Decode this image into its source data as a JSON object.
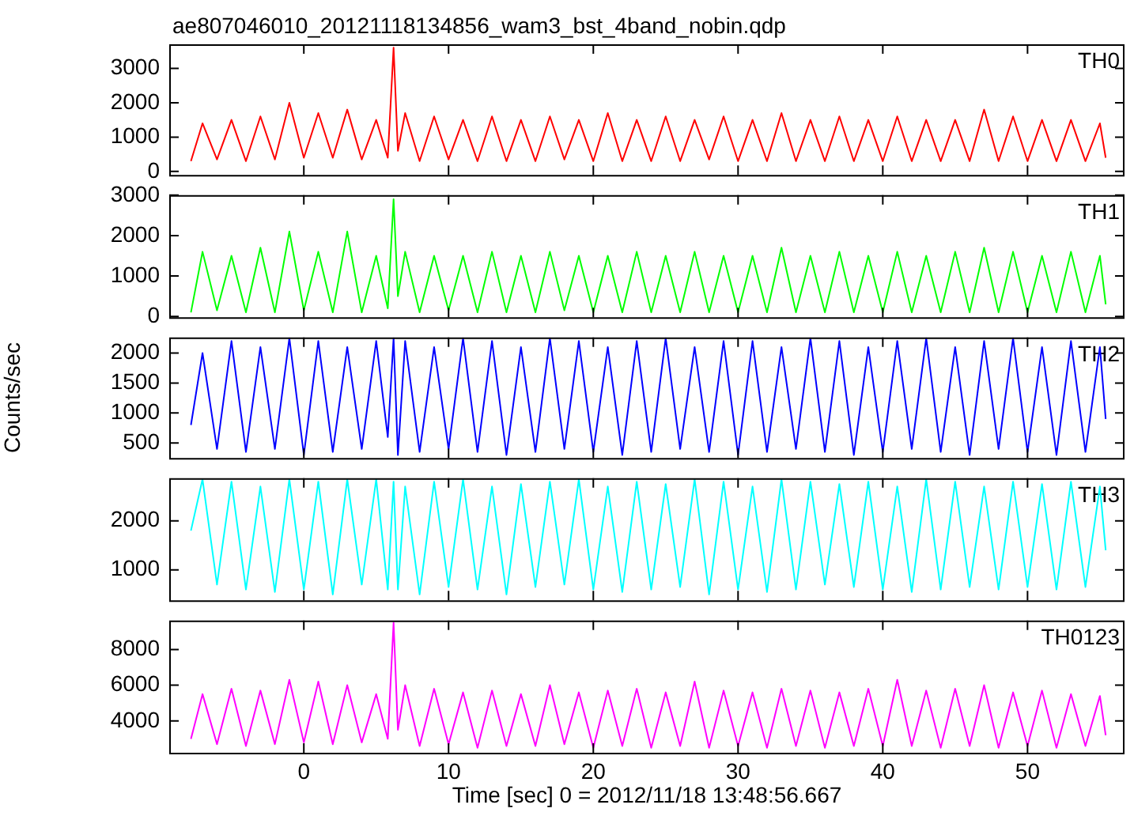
{
  "chart_data": [
    {
      "type": "line",
      "title": "ae807046010_20121118134856_wam3_bst_4band_nobin.qdp",
      "x": [
        -7.8,
        -7,
        -6,
        -5,
        -4,
        -3,
        -2,
        -1,
        0,
        1,
        2,
        3,
        4,
        5,
        5.8,
        6.2,
        6.5,
        7,
        8,
        9,
        10,
        11,
        12,
        13,
        14,
        15,
        16,
        17,
        18,
        19,
        20,
        21,
        22,
        23,
        24,
        25,
        26,
        27,
        28,
        29,
        30,
        31,
        32,
        33,
        34,
        35,
        36,
        37,
        38,
        39,
        40,
        41,
        42,
        43,
        44,
        45,
        46,
        47,
        48,
        49,
        50,
        51,
        52,
        53,
        54,
        55,
        55.4
      ],
      "xlim": [
        -9.3,
        56.7
      ],
      "xticks": [
        0,
        10,
        20,
        30,
        40,
        50
      ],
      "ylim": [
        -100,
        3700
      ],
      "yticks": [
        0,
        1000,
        2000,
        3000
      ],
      "tick_labels": "y",
      "marker": "none",
      "series": [
        {
          "name": "TH0",
          "color": "#ff0000",
          "values": [
            300,
            1400,
            350,
            1500,
            300,
            1600,
            350,
            2000,
            400,
            1700,
            400,
            1800,
            350,
            1500,
            400,
            3600,
            600,
            1700,
            300,
            1600,
            350,
            1500,
            300,
            1600,
            300,
            1500,
            300,
            1600,
            350,
            1500,
            300,
            1700,
            300,
            1500,
            300,
            1600,
            300,
            1500,
            350,
            1600,
            300,
            1500,
            300,
            1700,
            300,
            1500,
            300,
            1600,
            300,
            1500,
            300,
            1600,
            300,
            1500,
            300,
            1500,
            300,
            1800,
            300,
            1600,
            300,
            1500,
            300,
            1500,
            300,
            1400,
            400
          ]
        }
      ]
    },
    {
      "type": "line",
      "x": [
        -7.8,
        -7,
        -6,
        -5,
        -4,
        -3,
        -2,
        -1,
        0,
        1,
        2,
        3,
        4,
        5,
        5.8,
        6.2,
        6.5,
        7,
        8,
        9,
        10,
        11,
        12,
        13,
        14,
        15,
        16,
        17,
        18,
        19,
        20,
        21,
        22,
        23,
        24,
        25,
        26,
        27,
        28,
        29,
        30,
        31,
        32,
        33,
        34,
        35,
        36,
        37,
        38,
        39,
        40,
        41,
        42,
        43,
        44,
        45,
        46,
        47,
        48,
        49,
        50,
        51,
        52,
        53,
        54,
        55,
        55.4
      ],
      "xlim": [
        -9.3,
        56.7
      ],
      "xticks": [
        0,
        10,
        20,
        30,
        40,
        50
      ],
      "ylim": [
        -20,
        3000
      ],
      "yticks": [
        0,
        1000,
        2000,
        3000
      ],
      "tick_labels": "y",
      "marker": "none",
      "series": [
        {
          "name": "TH1",
          "color": "#00ff00",
          "values": [
            100,
            1600,
            150,
            1500,
            100,
            1700,
            100,
            2100,
            150,
            1600,
            100,
            2100,
            100,
            1500,
            200,
            2900,
            500,
            1600,
            100,
            1500,
            150,
            1500,
            100,
            1600,
            100,
            1500,
            100,
            1600,
            150,
            1500,
            100,
            1500,
            100,
            1600,
            100,
            1500,
            100,
            1600,
            100,
            1500,
            100,
            1500,
            100,
            1700,
            100,
            1500,
            100,
            1600,
            100,
            1500,
            100,
            1600,
            100,
            1500,
            100,
            1600,
            100,
            1700,
            100,
            1600,
            100,
            1500,
            100,
            1600,
            100,
            1500,
            300
          ]
        }
      ]
    },
    {
      "type": "line",
      "ylabel": "Counts/sec",
      "x": [
        -7.8,
        -7,
        -6,
        -5,
        -4,
        -3,
        -2,
        -1,
        0,
        1,
        2,
        3,
        4,
        5,
        5.8,
        6.2,
        6.5,
        7,
        8,
        9,
        10,
        11,
        12,
        13,
        14,
        15,
        16,
        17,
        18,
        19,
        20,
        21,
        22,
        23,
        24,
        25,
        26,
        27,
        28,
        29,
        30,
        31,
        32,
        33,
        34,
        35,
        36,
        37,
        38,
        39,
        40,
        41,
        42,
        43,
        44,
        45,
        46,
        47,
        48,
        49,
        50,
        51,
        52,
        53,
        54,
        55,
        55.4
      ],
      "xlim": [
        -9.3,
        56.7
      ],
      "xticks": [
        0,
        10,
        20,
        30,
        40,
        50
      ],
      "ylim": [
        250,
        2260
      ],
      "yticks": [
        500,
        1000,
        1500,
        2000
      ],
      "tick_labels": "y",
      "marker": "none",
      "series": [
        {
          "name": "TH2",
          "color": "#0000ff",
          "values": [
            800,
            2000,
            400,
            2200,
            350,
            2100,
            400,
            2250,
            300,
            2200,
            350,
            2100,
            400,
            2200,
            600,
            2250,
            300,
            2200,
            350,
            2100,
            400,
            2250,
            350,
            2200,
            300,
            2100,
            350,
            2250,
            400,
            2200,
            350,
            2100,
            300,
            2200,
            350,
            2250,
            400,
            2100,
            350,
            2200,
            300,
            2200,
            350,
            2100,
            400,
            2250,
            350,
            2200,
            300,
            2100,
            350,
            2200,
            400,
            2250,
            350,
            2100,
            300,
            2200,
            400,
            2250,
            350,
            2100,
            300,
            2200,
            350,
            2100,
            900
          ]
        }
      ]
    },
    {
      "type": "line",
      "x": [
        -7.8,
        -7,
        -6,
        -5,
        -4,
        -3,
        -2,
        -1,
        0,
        1,
        2,
        3,
        4,
        5,
        5.8,
        6.2,
        6.5,
        7,
        8,
        9,
        10,
        11,
        12,
        13,
        14,
        15,
        16,
        17,
        18,
        19,
        20,
        21,
        22,
        23,
        24,
        25,
        26,
        27,
        28,
        29,
        30,
        31,
        32,
        33,
        34,
        35,
        36,
        37,
        38,
        39,
        40,
        41,
        42,
        43,
        44,
        45,
        46,
        47,
        48,
        49,
        50,
        51,
        52,
        53,
        54,
        55,
        55.4
      ],
      "xlim": [
        -9.3,
        56.7
      ],
      "xticks": [
        0,
        10,
        20,
        30,
        40,
        50
      ],
      "ylim": [
        380,
        2870
      ],
      "yticks": [
        1000,
        2000
      ],
      "tick_labels": "y",
      "marker": "none",
      "series": [
        {
          "name": "TH3",
          "color": "#00ffff",
          "values": [
            1800,
            2850,
            700,
            2800,
            600,
            2700,
            550,
            2850,
            600,
            2800,
            500,
            2850,
            700,
            2850,
            600,
            2800,
            600,
            2700,
            500,
            2800,
            650,
            2850,
            600,
            2700,
            500,
            2750,
            650,
            2800,
            700,
            2850,
            600,
            2700,
            550,
            2800,
            600,
            2750,
            650,
            2850,
            500,
            2800,
            600,
            2700,
            550,
            2850,
            600,
            2800,
            700,
            2750,
            650,
            2800,
            600,
            2700,
            550,
            2850,
            600,
            2800,
            650,
            2700,
            600,
            2800,
            650,
            2750,
            600,
            2800,
            650,
            2700,
            1400
          ]
        }
      ]
    },
    {
      "type": "line",
      "xlabel": "Time [sec] 0 = 2012/11/18 13:48:56.667",
      "x": [
        -7.8,
        -7,
        -6,
        -5,
        -4,
        -3,
        -2,
        -1,
        0,
        1,
        2,
        3,
        4,
        5,
        5.8,
        6.2,
        6.5,
        7,
        8,
        9,
        10,
        11,
        12,
        13,
        14,
        15,
        16,
        17,
        18,
        19,
        20,
        21,
        22,
        23,
        24,
        25,
        26,
        27,
        28,
        29,
        30,
        31,
        32,
        33,
        34,
        35,
        36,
        37,
        38,
        39,
        40,
        41,
        42,
        43,
        44,
        45,
        46,
        47,
        48,
        49,
        50,
        51,
        52,
        53,
        54,
        55,
        55.4
      ],
      "xlim": [
        -9.3,
        56.7
      ],
      "xticks": [
        0,
        10,
        20,
        30,
        40,
        50
      ],
      "ylim": [
        2220,
        9620
      ],
      "yticks": [
        4000,
        6000,
        8000
      ],
      "marker": "none",
      "series": [
        {
          "name": "TH0123",
          "color": "#ff00ff",
          "values": [
            3000,
            5500,
            2700,
            5800,
            2600,
            5700,
            2700,
            6300,
            2800,
            6200,
            2700,
            6000,
            2800,
            5500,
            3000,
            9500,
            3500,
            6000,
            2600,
            5800,
            2700,
            5600,
            2500,
            5700,
            2600,
            5500,
            2600,
            6000,
            2700,
            5600,
            2500,
            5700,
            2600,
            5800,
            2500,
            5600,
            2600,
            6200,
            2500,
            5700,
            2600,
            5600,
            2500,
            5800,
            2600,
            5700,
            2500,
            5600,
            2600,
            5800,
            2600,
            6300,
            2600,
            5700,
            2500,
            5800,
            2600,
            6000,
            2500,
            5600,
            2600,
            5700,
            2500,
            5500,
            2600,
            5400,
            3200
          ]
        }
      ]
    }
  ]
}
